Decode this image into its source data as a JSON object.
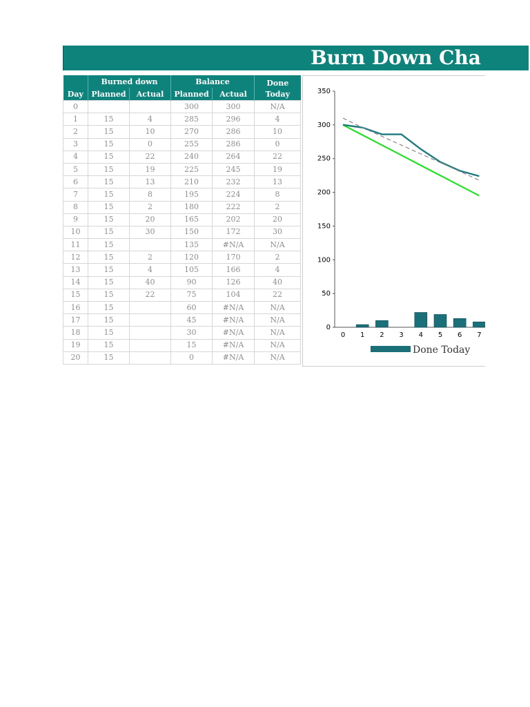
{
  "title": "Burn Down Cha",
  "table": {
    "group_headers": {
      "burned_down": "Burned down",
      "balance": "Balance",
      "done_today": "Done Today"
    },
    "columns": {
      "day": "Day",
      "bd_planned": "Planned",
      "bd_actual": "Actual",
      "bal_planned": "Planned",
      "bal_actual": "Actual",
      "done_today": "Today",
      "done_word": "Done"
    },
    "rows": [
      [
        "0",
        "",
        "",
        "300",
        "300",
        "N/A"
      ],
      [
        "1",
        "15",
        "4",
        "285",
        "296",
        "4"
      ],
      [
        "2",
        "15",
        "10",
        "270",
        "286",
        "10"
      ],
      [
        "3",
        "15",
        "0",
        "255",
        "286",
        "0"
      ],
      [
        "4",
        "15",
        "22",
        "240",
        "264",
        "22"
      ],
      [
        "5",
        "15",
        "19",
        "225",
        "245",
        "19"
      ],
      [
        "6",
        "15",
        "13",
        "210",
        "232",
        "13"
      ],
      [
        "7",
        "15",
        "8",
        "195",
        "224",
        "8"
      ],
      [
        "8",
        "15",
        "2",
        "180",
        "222",
        "2"
      ],
      [
        "9",
        "15",
        "20",
        "165",
        "202",
        "20"
      ],
      [
        "10",
        "15",
        "30",
        "150",
        "172",
        "30"
      ],
      [
        "11",
        "15",
        "",
        "135",
        "#N/A",
        "N/A"
      ],
      [
        "12",
        "15",
        "2",
        "120",
        "170",
        "2"
      ],
      [
        "13",
        "15",
        "4",
        "105",
        "166",
        "4"
      ],
      [
        "14",
        "15",
        "40",
        "90",
        "126",
        "40"
      ],
      [
        "15",
        "15",
        "22",
        "75",
        "104",
        "22"
      ],
      [
        "16",
        "15",
        "",
        "60",
        "#N/A",
        "N/A"
      ],
      [
        "17",
        "15",
        "",
        "45",
        "#N/A",
        "N/A"
      ],
      [
        "18",
        "15",
        "",
        "30",
        "#N/A",
        "N/A"
      ],
      [
        "19",
        "15",
        "",
        "15",
        "#N/A",
        "N/A"
      ],
      [
        "20",
        "15",
        "",
        "0",
        "#N/A",
        "N/A"
      ]
    ]
  },
  "chart_data": {
    "type": "line",
    "x": [
      0,
      1,
      2,
      3,
      4,
      5,
      6,
      7
    ],
    "x_ticks": [
      "0",
      "1",
      "2",
      "3",
      "4",
      "5",
      "6",
      "7"
    ],
    "y_ticks": [
      "0",
      "50",
      "100",
      "150",
      "200",
      "250",
      "300",
      "350"
    ],
    "ylim": [
      0,
      350
    ],
    "series": [
      {
        "kind": "line",
        "values": [
          300,
          285,
          270,
          255,
          240,
          225,
          210,
          195
        ],
        "color": "#22e022"
      },
      {
        "kind": "line",
        "values": [
          300,
          296,
          286,
          286,
          264,
          245,
          232,
          224
        ],
        "color": "#1f7a80"
      },
      {
        "kind": "trend",
        "values": [
          310,
          296,
          283,
          270,
          257,
          244,
          231,
          218
        ],
        "color": "#888888"
      },
      {
        "kind": "bar",
        "name": "Done Today",
        "values": [
          null,
          4,
          10,
          0,
          22,
          19,
          13,
          8
        ],
        "color": "#1b6f78"
      }
    ],
    "legend": {
      "label": "Done Today",
      "position": "bottom"
    }
  }
}
